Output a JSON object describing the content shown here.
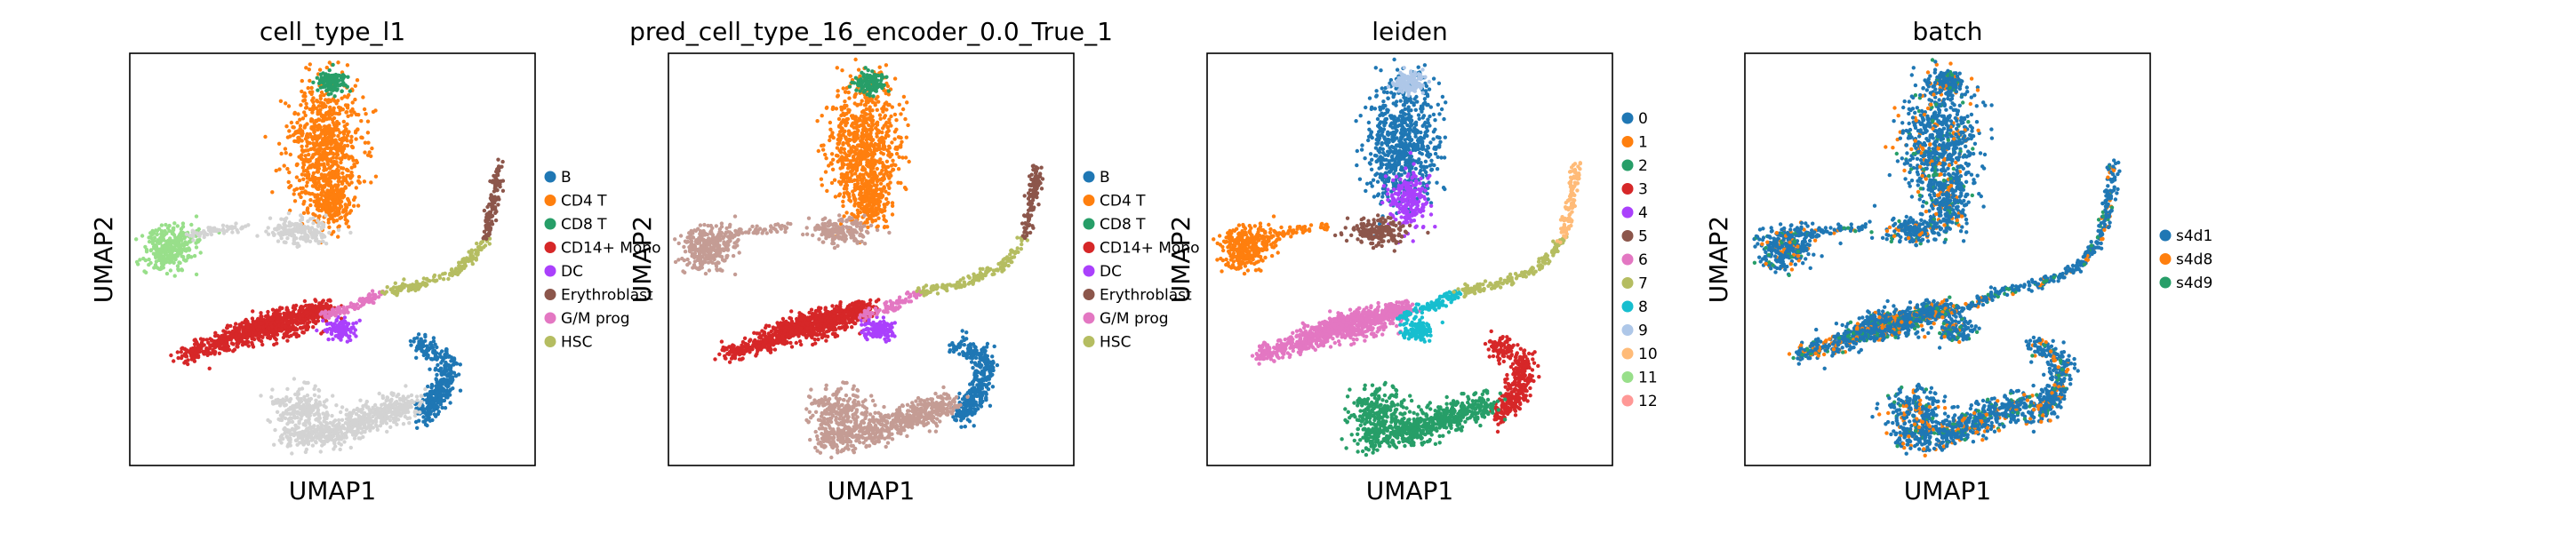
{
  "figure": {
    "panels": [
      {
        "title": "cell_type_l1",
        "xlabel": "UMAP1",
        "ylabel": "UMAP2",
        "legend": [
          {
            "label": "B",
            "color": "#1f77b4"
          },
          {
            "label": "CD4 T",
            "color": "#ff7f0e"
          },
          {
            "label": "CD8 T",
            "color": "#279e68"
          },
          {
            "label": "CD14+ Mono",
            "color": "#d62728"
          },
          {
            "label": "DC",
            "color": "#aa40fc"
          },
          {
            "label": "Erythroblast",
            "color": "#8c564b"
          },
          {
            "label": "G/M prog",
            "color": "#e377c2"
          },
          {
            "label": "HSC",
            "color": "#b5bd61"
          }
        ]
      },
      {
        "title": "pred_cell_type_16_encoder_0.0_True_1",
        "xlabel": "UMAP1",
        "ylabel": "UMAP2",
        "legend": [
          {
            "label": "B",
            "color": "#1f77b4"
          },
          {
            "label": "CD4 T",
            "color": "#ff7f0e"
          },
          {
            "label": "CD8 T",
            "color": "#279e68"
          },
          {
            "label": "CD14+ Mono",
            "color": "#d62728"
          },
          {
            "label": "DC",
            "color": "#aa40fc"
          },
          {
            "label": "Erythroblast",
            "color": "#8c564b"
          },
          {
            "label": "G/M prog",
            "color": "#e377c2"
          },
          {
            "label": "HSC",
            "color": "#b5bd61"
          }
        ]
      },
      {
        "title": "leiden",
        "xlabel": "UMAP1",
        "ylabel": "UMAP2",
        "legend": [
          {
            "label": "0",
            "color": "#1f77b4"
          },
          {
            "label": "1",
            "color": "#ff7f0e"
          },
          {
            "label": "2",
            "color": "#279e68"
          },
          {
            "label": "3",
            "color": "#d62728"
          },
          {
            "label": "4",
            "color": "#aa40fc"
          },
          {
            "label": "5",
            "color": "#8c564b"
          },
          {
            "label": "6",
            "color": "#e377c2"
          },
          {
            "label": "7",
            "color": "#b5bd61"
          },
          {
            "label": "8",
            "color": "#17becf"
          },
          {
            "label": "9",
            "color": "#aec7e8"
          },
          {
            "label": "10",
            "color": "#ffbb78"
          },
          {
            "label": "11",
            "color": "#98df8a"
          },
          {
            "label": "12",
            "color": "#ff9896"
          }
        ]
      },
      {
        "title": "batch",
        "xlabel": "UMAP1",
        "ylabel": "UMAP2",
        "legend": [
          {
            "label": "s4d1",
            "color": "#1f77b4"
          },
          {
            "label": "s4d8",
            "color": "#ff7f0e"
          },
          {
            "label": "s4d9",
            "color": "#279e68"
          }
        ]
      }
    ]
  },
  "chart_data": [
    {
      "type": "scatter",
      "title": "cell_type_l1",
      "xlabel": "UMAP1",
      "ylabel": "UMAP2",
      "grid": false,
      "legend_position": "right",
      "ticks": "none",
      "series": [
        {
          "name": "B",
          "color": "#1f77b4"
        },
        {
          "name": "CD4 T",
          "color": "#ff7f0e"
        },
        {
          "name": "CD8 T",
          "color": "#279e68"
        },
        {
          "name": "CD14+ Mono",
          "color": "#d62728"
        },
        {
          "name": "DC",
          "color": "#aa40fc"
        },
        {
          "name": "Erythroblast",
          "color": "#8c564b"
        },
        {
          "name": "G/M prog",
          "color": "#e377c2"
        },
        {
          "name": "HSC",
          "color": "#b5bd61"
        }
      ],
      "unlabeled_color": "#d3d3d3"
    },
    {
      "type": "scatter",
      "title": "pred_cell_type_16_encoder_0.0_True_1",
      "xlabel": "UMAP1",
      "ylabel": "UMAP2",
      "grid": false,
      "legend_position": "right",
      "ticks": "none",
      "series": [
        {
          "name": "B",
          "color": "#1f77b4"
        },
        {
          "name": "CD4 T",
          "color": "#ff7f0e"
        },
        {
          "name": "CD8 T",
          "color": "#279e68"
        },
        {
          "name": "CD14+ Mono",
          "color": "#d62728"
        },
        {
          "name": "DC",
          "color": "#aa40fc"
        },
        {
          "name": "Erythroblast",
          "color": "#8c564b"
        },
        {
          "name": "G/M prog",
          "color": "#e377c2"
        },
        {
          "name": "HSC",
          "color": "#b5bd61"
        }
      ]
    },
    {
      "type": "scatter",
      "title": "leiden",
      "xlabel": "UMAP1",
      "ylabel": "UMAP2",
      "grid": false,
      "legend_position": "right",
      "ticks": "none",
      "series": [
        {
          "name": "0",
          "color": "#1f77b4"
        },
        {
          "name": "1",
          "color": "#ff7f0e"
        },
        {
          "name": "2",
          "color": "#279e68"
        },
        {
          "name": "3",
          "color": "#d62728"
        },
        {
          "name": "4",
          "color": "#aa40fc"
        },
        {
          "name": "5",
          "color": "#8c564b"
        },
        {
          "name": "6",
          "color": "#e377c2"
        },
        {
          "name": "7",
          "color": "#b5bd61"
        },
        {
          "name": "8",
          "color": "#17becf"
        },
        {
          "name": "9",
          "color": "#aec7e8"
        },
        {
          "name": "10",
          "color": "#ffbb78"
        },
        {
          "name": "11",
          "color": "#98df8a"
        },
        {
          "name": "12",
          "color": "#ff9896"
        }
      ]
    },
    {
      "type": "scatter",
      "title": "batch",
      "xlabel": "UMAP1",
      "ylabel": "UMAP2",
      "grid": false,
      "legend_position": "right",
      "ticks": "none",
      "series": [
        {
          "name": "s4d1",
          "color": "#1f77b4"
        },
        {
          "name": "s4d8",
          "color": "#ff7f0e"
        },
        {
          "name": "s4d9",
          "color": "#279e68"
        }
      ]
    }
  ]
}
